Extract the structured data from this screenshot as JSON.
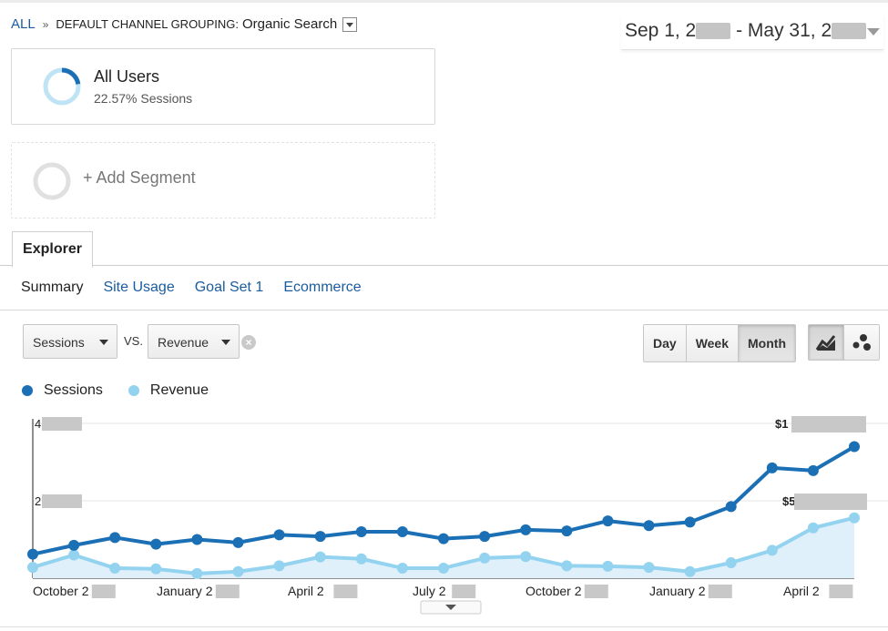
{
  "breadcrumb": {
    "all": "ALL",
    "sep": "»",
    "label": "DEFAULT CHANNEL GROUPING:",
    "value": "Organic Search"
  },
  "date_range": {
    "start": "Sep 1, 2",
    "end": "May 31, 2",
    "separator": "-"
  },
  "segment": {
    "title": "All Users",
    "subtitle": "22.57% Sessions",
    "percent": 0.2257
  },
  "add_segment": {
    "label": "+ Add Segment"
  },
  "tabs": {
    "explorer": "Explorer"
  },
  "subtabs": [
    "Summary",
    "Site Usage",
    "Goal Set 1",
    "Ecommerce"
  ],
  "metric_selector": {
    "primary": "Sessions",
    "vs": "VS.",
    "secondary": "Revenue"
  },
  "granularity": {
    "options": [
      "Day",
      "Week",
      "Month"
    ],
    "active": "Month"
  },
  "chart_type_buttons": {
    "icons": [
      "line-chart-icon",
      "motion-chart-icon"
    ],
    "active": "line-chart-icon"
  },
  "colors": {
    "sessions": "#1b6fb4",
    "revenue": "#93d3f0",
    "area": "#dff0fa"
  },
  "chart_data": {
    "type": "line",
    "legend": [
      "Sessions",
      "Revenue"
    ],
    "legend_position": "top-left",
    "x_tick_labels": [
      "October 2",
      "January 2",
      "April 2",
      "July 2",
      "October 2",
      "January 2",
      "April 2"
    ],
    "y_left_tick_labels": [
      "4",
      "2"
    ],
    "y_right_tick_labels": [
      "$1",
      "$5"
    ],
    "y_left_range": [
      0,
      4
    ],
    "grid": true,
    "note_units": "y values on the printed left-axis scale (Sessions) and relative scale for Revenue; tick values partially obscured in original",
    "series": [
      {
        "name": "Sessions",
        "values": [
          0.62,
          0.85,
          1.05,
          0.88,
          1.0,
          0.92,
          1.12,
          1.08,
          1.2,
          1.2,
          1.02,
          1.08,
          1.25,
          1.22,
          1.48,
          1.36,
          1.45,
          1.85,
          2.85,
          2.78,
          3.4
        ]
      },
      {
        "name": "Revenue",
        "values": [
          0.28,
          0.6,
          0.26,
          0.24,
          0.12,
          0.17,
          0.32,
          0.55,
          0.5,
          0.26,
          0.26,
          0.52,
          0.56,
          0.32,
          0.31,
          0.28,
          0.17,
          0.4,
          0.72,
          1.3,
          1.56
        ]
      }
    ]
  }
}
